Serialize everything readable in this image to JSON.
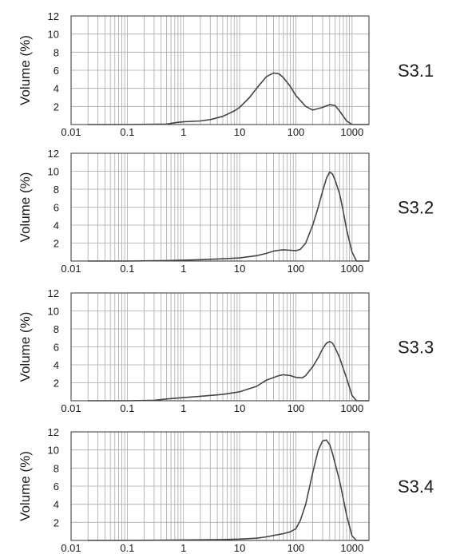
{
  "chart_data": [
    {
      "type": "line",
      "label": "S3.1",
      "ylabel": "Volume (%)",
      "xscale": "log",
      "xlim": [
        0.01,
        2000
      ],
      "ylim": [
        0,
        12
      ],
      "xticks": [
        0.01,
        0.1,
        1,
        10,
        100,
        1000
      ],
      "xtick_labels": [
        "0.01",
        "0.1",
        "1",
        "10",
        "100",
        "1000"
      ],
      "yticks": [
        2,
        4,
        6,
        8,
        10,
        12
      ],
      "ytick_labels": [
        "2",
        "4",
        "6",
        "8",
        "10",
        "12"
      ],
      "grid": true,
      "x": [
        0.02,
        0.1,
        0.5,
        0.8,
        1,
        2,
        3,
        5,
        8,
        10,
        15,
        20,
        30,
        40,
        50,
        60,
        80,
        100,
        150,
        200,
        300,
        400,
        500,
        600,
        800,
        1000,
        2000
      ],
      "y": [
        0,
        0,
        0.05,
        0.25,
        0.3,
        0.4,
        0.55,
        0.9,
        1.5,
        1.9,
        3.0,
        4.0,
        5.3,
        5.7,
        5.6,
        5.2,
        4.2,
        3.2,
        2.0,
        1.6,
        1.9,
        2.2,
        2.1,
        1.5,
        0.4,
        0,
        0
      ]
    },
    {
      "type": "line",
      "label": "S3.2",
      "ylabel": "Volume (%)",
      "xscale": "log",
      "xlim": [
        0.01,
        2000
      ],
      "ylim": [
        0,
        12
      ],
      "xticks": [
        0.01,
        0.1,
        1,
        10,
        100,
        1000
      ],
      "xtick_labels": [
        "0.01",
        "0.1",
        "1",
        "10",
        "100",
        "1000"
      ],
      "yticks": [
        2,
        4,
        6,
        8,
        10,
        12
      ],
      "ytick_labels": [
        "2",
        "4",
        "6",
        "8",
        "10",
        "12"
      ],
      "grid": true,
      "x": [
        0.02,
        0.1,
        0.5,
        1,
        2,
        5,
        10,
        20,
        30,
        40,
        50,
        60,
        80,
        100,
        120,
        150,
        200,
        250,
        300,
        350,
        400,
        450,
        500,
        600,
        700,
        800,
        1000,
        1200,
        2000
      ],
      "y": [
        0,
        0,
        0.05,
        0.1,
        0.15,
        0.25,
        0.35,
        0.6,
        0.85,
        1.1,
        1.2,
        1.25,
        1.2,
        1.15,
        1.3,
        2.0,
        4.0,
        6.0,
        7.8,
        9.2,
        9.9,
        9.7,
        9.0,
        7.5,
        5.5,
        3.5,
        1.0,
        0,
        0
      ]
    },
    {
      "type": "line",
      "label": "S3.3",
      "ylabel": "Volume (%)",
      "xscale": "log",
      "xlim": [
        0.01,
        2000
      ],
      "ylim": [
        0,
        12
      ],
      "xticks": [
        0.01,
        0.1,
        1,
        10,
        100,
        1000
      ],
      "xtick_labels": [
        "0.01",
        "0.1",
        "1",
        "10",
        "100",
        "1000"
      ],
      "yticks": [
        2,
        4,
        6,
        8,
        10,
        12
      ],
      "ytick_labels": [
        "2",
        "4",
        "6",
        "8",
        "10",
        "12"
      ],
      "grid": true,
      "x": [
        0.02,
        0.1,
        0.3,
        0.5,
        1,
        2,
        5,
        10,
        20,
        30,
        50,
        60,
        80,
        100,
        130,
        150,
        200,
        250,
        300,
        350,
        400,
        450,
        500,
        600,
        800,
        1000,
        1200,
        2000
      ],
      "y": [
        0,
        0,
        0.05,
        0.2,
        0.35,
        0.5,
        0.7,
        1.0,
        1.6,
        2.3,
        2.8,
        2.9,
        2.8,
        2.6,
        2.55,
        2.8,
        3.8,
        4.8,
        5.8,
        6.4,
        6.6,
        6.4,
        5.9,
        4.8,
        2.5,
        0.6,
        0,
        0
      ]
    },
    {
      "type": "line",
      "label": "S3.4",
      "ylabel": "Volume (%)",
      "xscale": "log",
      "xlim": [
        0.01,
        2000
      ],
      "ylim": [
        0,
        12
      ],
      "xticks": [
        0.01,
        0.1,
        1,
        10,
        100,
        1000
      ],
      "xtick_labels": [
        "0.01",
        "0.1",
        "1",
        "10",
        "100",
        "1000"
      ],
      "yticks": [
        2,
        4,
        6,
        8,
        10,
        12
      ],
      "ytick_labels": [
        "2",
        "4",
        "6",
        "8",
        "10",
        "12"
      ],
      "grid": true,
      "x": [
        0.02,
        0.1,
        1,
        5,
        10,
        20,
        30,
        40,
        60,
        80,
        100,
        120,
        150,
        200,
        250,
        300,
        350,
        400,
        450,
        500,
        600,
        700,
        800,
        1000,
        1200,
        2000
      ],
      "y": [
        0,
        0,
        0.05,
        0.1,
        0.15,
        0.25,
        0.4,
        0.55,
        0.75,
        0.95,
        1.3,
        2.2,
        4.0,
        7.5,
        10.0,
        11.0,
        11.1,
        10.6,
        9.6,
        8.5,
        6.6,
        4.6,
        2.8,
        0.5,
        0,
        0
      ]
    }
  ]
}
